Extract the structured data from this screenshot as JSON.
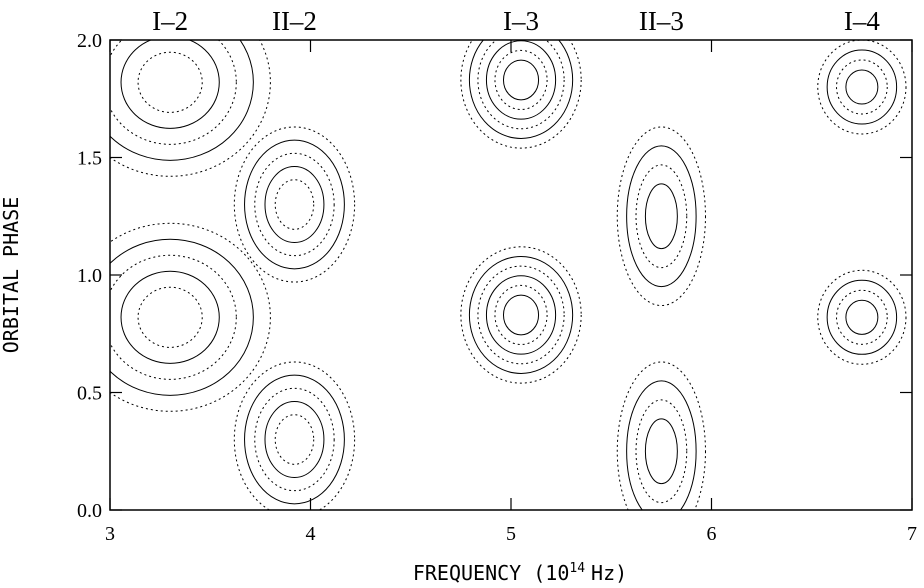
{
  "chart_data": {
    "type": "contour",
    "x_label": "FREQUENCY (10",
    "x_label_exponent": "14",
    "x_label_unit": "Hz)",
    "y_label": "ORBITAL PHASE",
    "xlim": [
      3,
      7
    ],
    "xticks": [
      3,
      4,
      5,
      6,
      7
    ],
    "ylim": [
      0,
      2
    ],
    "yticks": [
      {
        "value": 0,
        "label": "0.0"
      },
      {
        "value": 0.5,
        "label": "0.5"
      },
      {
        "value": 1,
        "label": "1.0"
      },
      {
        "value": 1.5,
        "label": "1.5"
      },
      {
        "value": 2,
        "label": "2.0"
      }
    ],
    "peak_labels": [
      {
        "text": "I–2",
        "x": 3.3
      },
      {
        "text": "II–2",
        "x": 3.92
      },
      {
        "text": "I–3",
        "x": 5.05
      },
      {
        "text": "II–3",
        "x": 5.75
      },
      {
        "text": "I–4",
        "x": 6.75
      }
    ],
    "peaks": [
      {
        "x": 3.3,
        "y": 0.82,
        "width": 0.5,
        "height": 0.4,
        "rings": 5
      },
      {
        "x": 3.3,
        "y": 1.82,
        "width": 0.5,
        "height": 0.4,
        "rings": 5
      },
      {
        "x": 3.92,
        "y": 1.3,
        "width": 0.3,
        "height": 0.33,
        "rings": 5
      },
      {
        "x": 3.92,
        "y": 0.3,
        "width": 0.3,
        "height": 0.33,
        "rings": 5
      },
      {
        "x": 5.05,
        "y": 0.83,
        "width": 0.3,
        "height": 0.29,
        "rings": 6
      },
      {
        "x": 5.05,
        "y": 1.83,
        "width": 0.3,
        "height": 0.29,
        "rings": 6
      },
      {
        "x": 5.75,
        "y": 1.25,
        "width": 0.22,
        "height": 0.38,
        "rings": 4
      },
      {
        "x": 5.75,
        "y": 0.25,
        "width": 0.22,
        "height": 0.38,
        "rings": 4
      },
      {
        "x": 6.75,
        "y": 0.82,
        "width": 0.22,
        "height": 0.2,
        "rings": 4
      },
      {
        "x": 6.75,
        "y": 1.8,
        "width": 0.22,
        "height": 0.2,
        "rings": 4
      }
    ]
  }
}
